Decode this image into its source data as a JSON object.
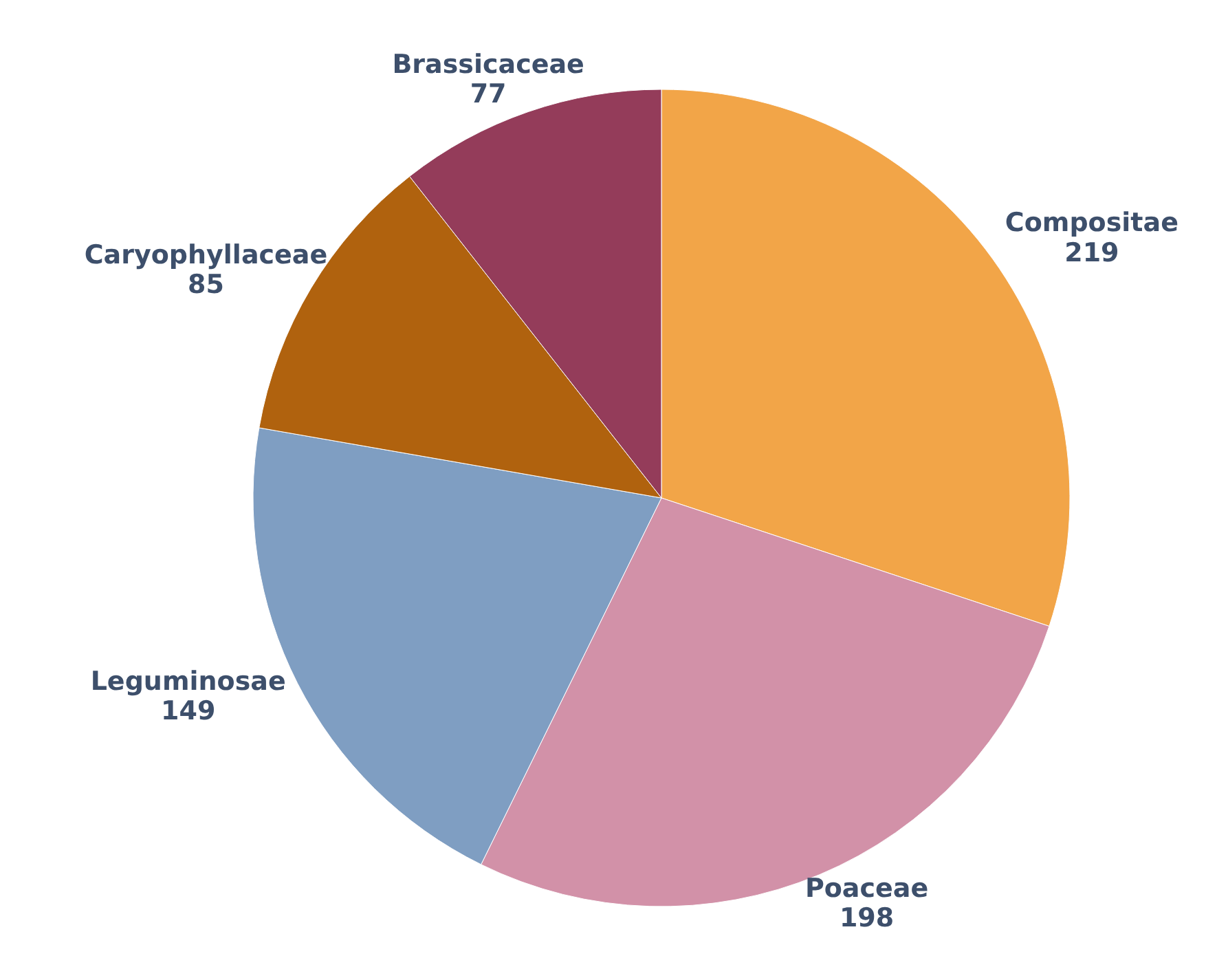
{
  "chart_data": {
    "type": "pie",
    "categories": [
      "Compositae",
      "Poaceae",
      "Leguminosae",
      "Caryophyllaceae",
      "Brassicaceae"
    ],
    "values": [
      219,
      198,
      149,
      85,
      77
    ],
    "colors": [
      "#f2a548",
      "#d291a8",
      "#7f9ec2",
      "#b0620e",
      "#943c5a"
    ],
    "data_labels": true
  }
}
